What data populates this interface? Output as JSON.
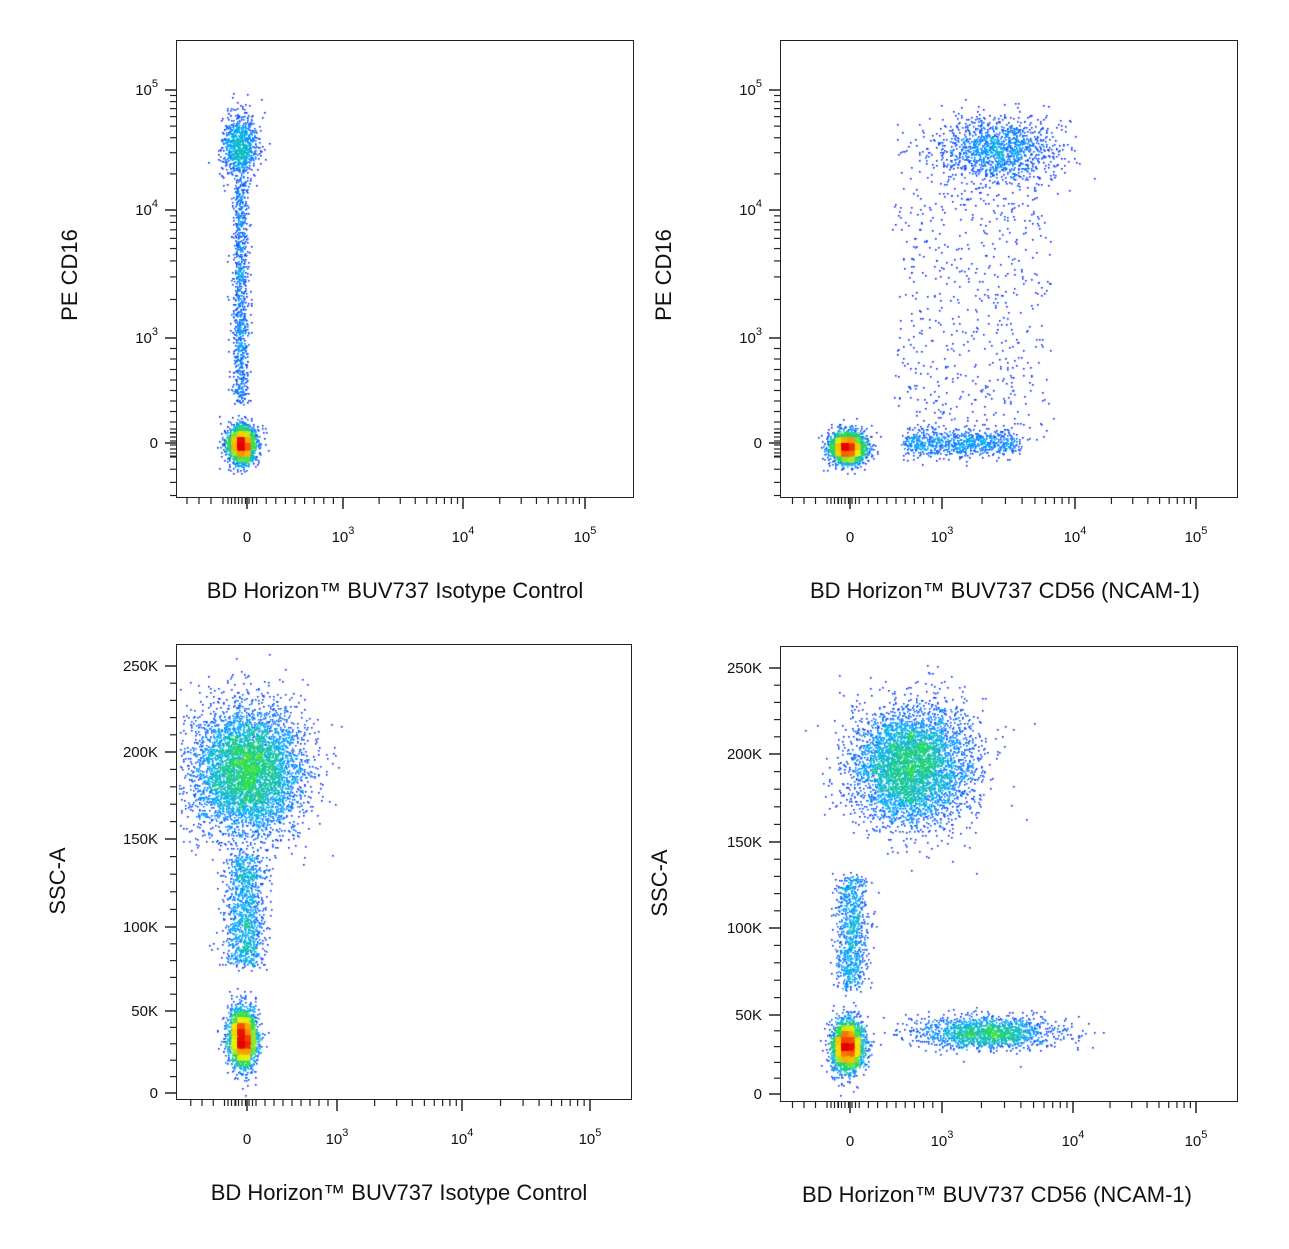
{
  "chart_data": [
    {
      "type": "scatter",
      "panel": "top-left",
      "xlabel": "BD Horizon™ BUV737 Isotype Control",
      "ylabel": "PE CD16",
      "x_scale": "biexponential",
      "y_scale": "biexponential",
      "x_ticks": [
        "0",
        "10^3",
        "10^4",
        "10^5"
      ],
      "y_ticks": [
        "0",
        "10^3",
        "10^4",
        "10^5"
      ],
      "populations": [
        {
          "name": "",
          "x_center": 0,
          "y_center": 0,
          "count": 2600
        },
        {
          "name": "",
          "x_center": 0,
          "y_center": 35000,
          "count": 900
        },
        {
          "name": "",
          "x_center": 0,
          "y_range": [
            300,
            20000
          ],
          "count": 900
        }
      ],
      "grid": false
    },
    {
      "type": "scatter",
      "panel": "top-right",
      "xlabel": "BD Horizon™ BUV737 CD56 (NCAM-1)",
      "ylabel": "PE CD16",
      "x_scale": "biexponential",
      "y_scale": "biexponential",
      "x_ticks": [
        "0",
        "10^3",
        "10^4",
        "10^5"
      ],
      "y_ticks": [
        "0",
        "10^3",
        "10^4",
        "10^5"
      ],
      "populations": [
        {
          "name": "",
          "x_center": 0,
          "y_center": 0,
          "count": 2400
        },
        {
          "name": "",
          "x_center": 3000,
          "y_center": 30000,
          "count": 1300
        },
        {
          "name": "",
          "x_range": [
            0,
            30000
          ],
          "y_center": 0,
          "count": 800
        },
        {
          "name": "",
          "x_range": [
            0,
            20000
          ],
          "y_range": [
            0,
            60000
          ],
          "count": 700
        }
      ],
      "grid": false
    },
    {
      "type": "scatter",
      "panel": "bottom-left",
      "xlabel": "BD Horizon™ BUV737 Isotype Control",
      "ylabel": "SSC-A",
      "x_scale": "biexponential",
      "y_scale": "linear",
      "ylim": [
        0,
        260000
      ],
      "x_ticks": [
        "0",
        "10^3",
        "10^4",
        "10^5"
      ],
      "y_ticks": [
        "0",
        "50K",
        "100K",
        "150K",
        "200K",
        "250K"
      ],
      "populations": [
        {
          "name": "",
          "x_center": 0,
          "y_center": 35000,
          "count": 2600
        },
        {
          "name": "",
          "x_center": 0,
          "y_center": 185000,
          "count": 5200
        },
        {
          "name": "",
          "x_center": 0,
          "y_range": [
            60000,
            150000
          ],
          "count": 1200
        }
      ],
      "grid": false
    },
    {
      "type": "scatter",
      "panel": "bottom-right",
      "xlabel": "BD Horizon™ BUV737 CD56 (NCAM-1)",
      "ylabel": "SSC-A",
      "x_scale": "biexponential",
      "y_scale": "linear",
      "ylim": [
        0,
        260000
      ],
      "x_ticks": [
        "0",
        "10^3",
        "10^4",
        "10^5"
      ],
      "y_ticks": [
        "0",
        "50K",
        "100K",
        "150K",
        "200K",
        "250K"
      ],
      "populations": [
        {
          "name": "",
          "x_center": 0,
          "y_center": 32000,
          "count": 2600
        },
        {
          "name": "",
          "x_center": 700,
          "y_center": 185000,
          "count": 4800
        },
        {
          "name": "",
          "x_center": 2500,
          "y_center": 38000,
          "count": 1600
        },
        {
          "name": "",
          "x_center": 0,
          "y_range": [
            50000,
            140000
          ],
          "count": 900
        }
      ],
      "grid": false
    }
  ],
  "colors": {
    "density_low": "#0000ff",
    "density_mid_low": "#00c0ff",
    "density_mid": "#40e040",
    "density_mid_high": "#ffff00",
    "density_high": "#ff0000"
  }
}
